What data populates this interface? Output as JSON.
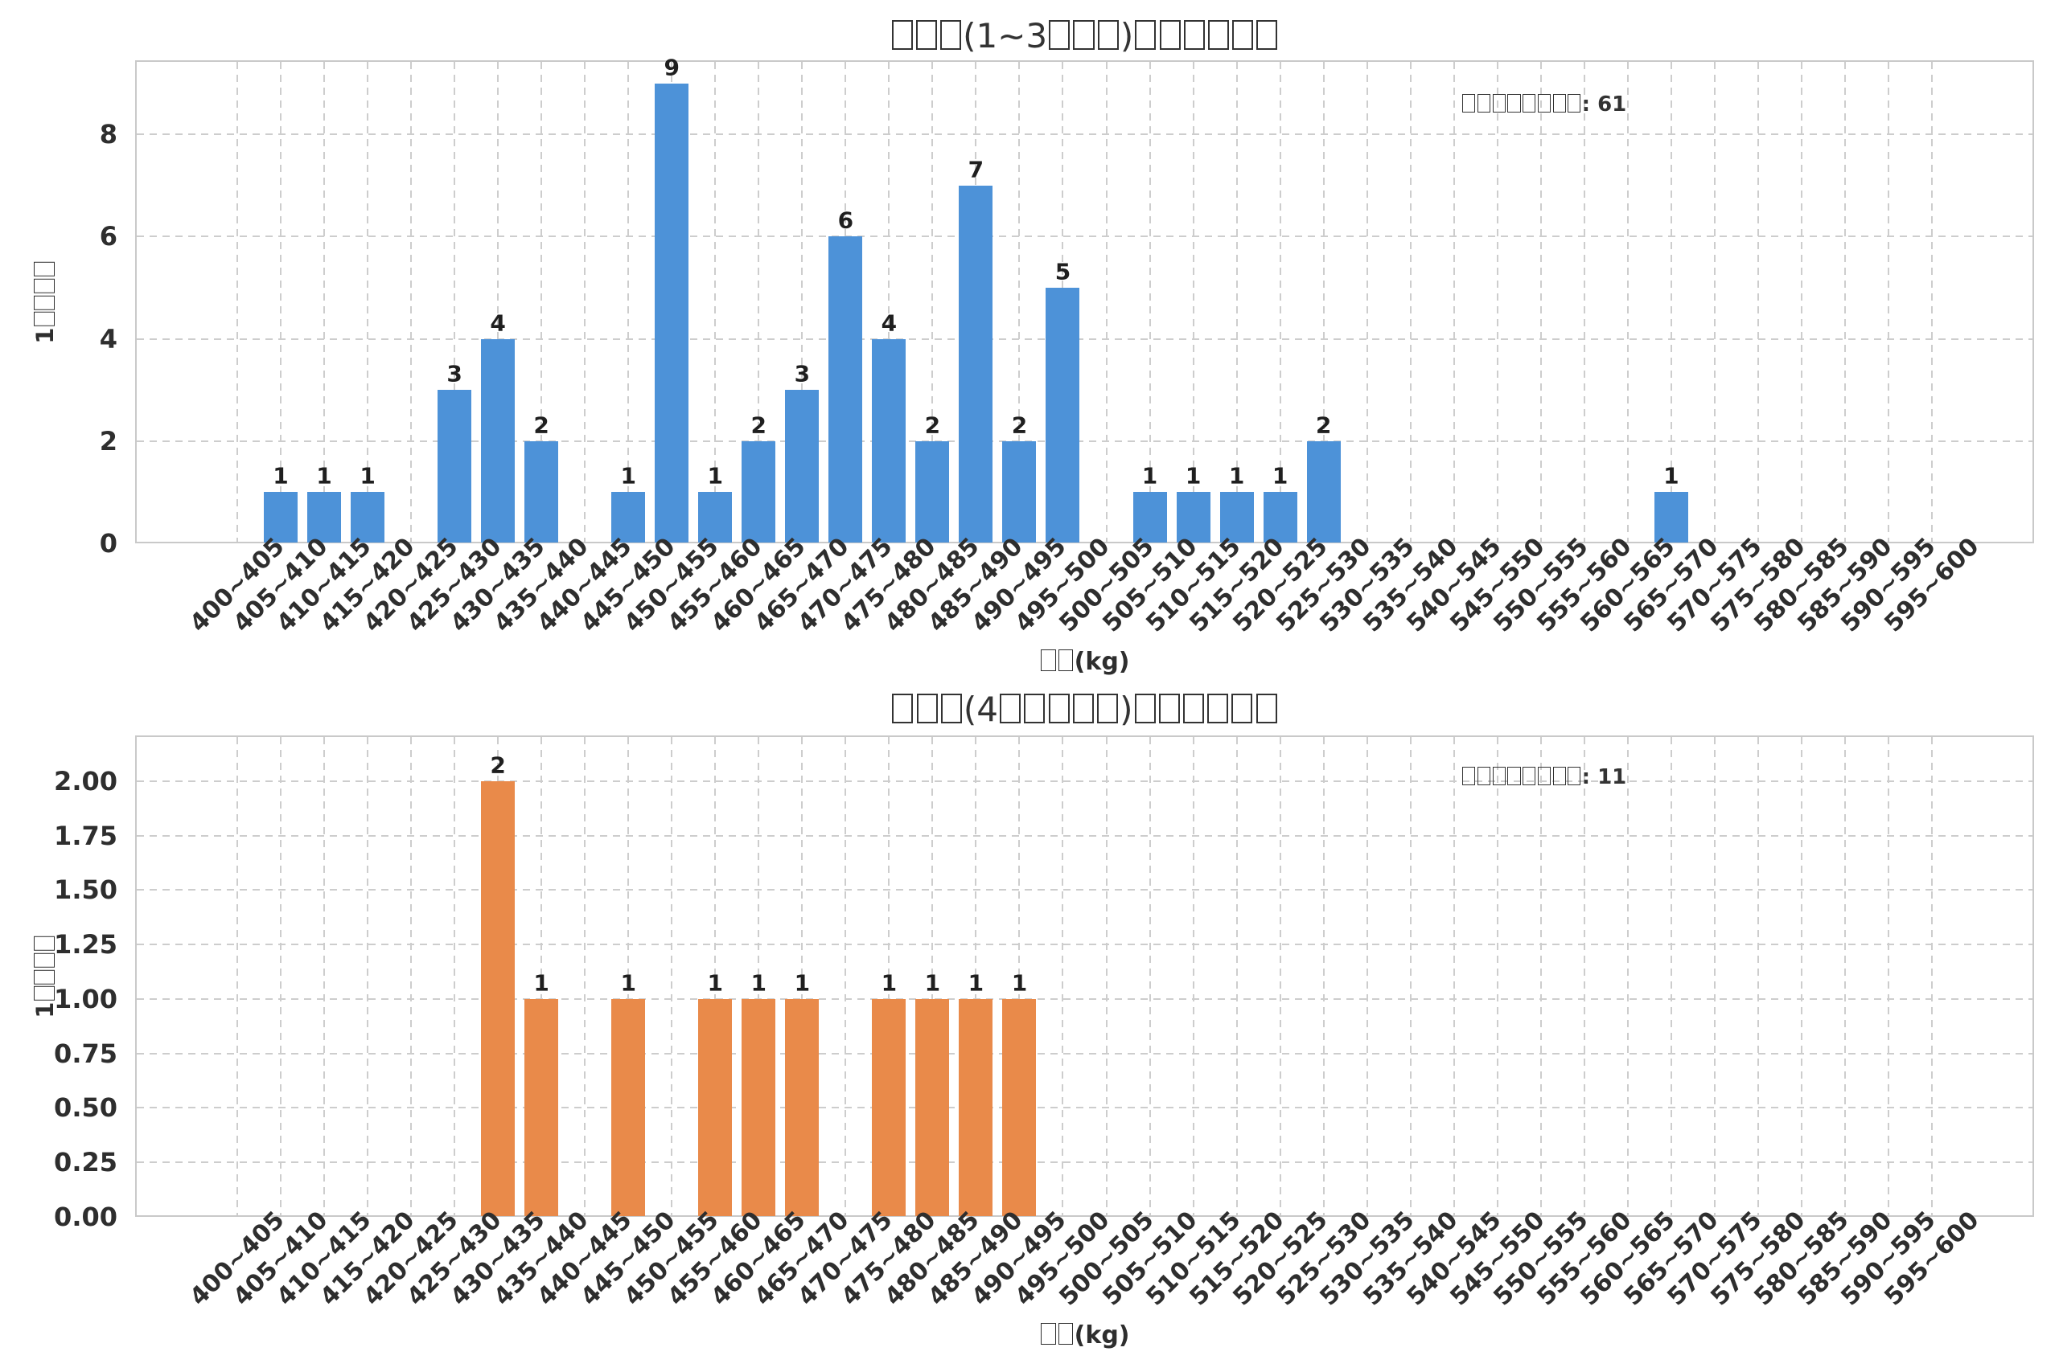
{
  "page": {
    "background": "#ffffff",
    "grid_color": "#cdcdcd",
    "spine_color": "#c9c9c9"
  },
  "chart_data": [
    {
      "type": "bar",
      "title": "□□□(1~3□□□)□□□□□□",
      "xlabel": "□□(kg)",
      "ylabel": "1□□□□",
      "annotation": "□□□□□□□□: 61",
      "bar_color": "#4D92D8",
      "grid": "dashed",
      "legend_position": "none",
      "ylim": [
        0,
        9.45
      ],
      "y_tick_labels": [
        "0",
        "2",
        "4",
        "6",
        "8"
      ],
      "y_tick_values": [
        0,
        2,
        4,
        6,
        8
      ],
      "categories": [
        "400~405",
        "405~410",
        "410~415",
        "415~420",
        "420~425",
        "425~430",
        "430~435",
        "435~440",
        "440~445",
        "445~450",
        "450~455",
        "455~460",
        "460~465",
        "465~470",
        "470~475",
        "475~480",
        "480~485",
        "485~490",
        "490~495",
        "495~500",
        "500~505",
        "505~510",
        "510~515",
        "515~520",
        "520~525",
        "525~530",
        "530~535",
        "535~540",
        "540~545",
        "545~550",
        "550~555",
        "555~560",
        "560~565",
        "565~570",
        "570~575",
        "575~580",
        "580~585",
        "585~590",
        "590~595",
        "595~600"
      ],
      "values": [
        0,
        1,
        1,
        1,
        0,
        3,
        4,
        2,
        0,
        1,
        9,
        1,
        2,
        3,
        6,
        4,
        2,
        7,
        2,
        5,
        0,
        1,
        1,
        1,
        1,
        2,
        0,
        0,
        0,
        0,
        0,
        0,
        0,
        1,
        0,
        0,
        0,
        0,
        0,
        0
      ]
    },
    {
      "type": "bar",
      "title": "□□□(4□□□□□)□□□□□□",
      "xlabel": "□□(kg)",
      "ylabel": "1□□□□",
      "annotation": "□□□□□□□□: 11",
      "bar_color": "#E98A4A",
      "grid": "dashed",
      "legend_position": "none",
      "ylim": [
        0,
        2.21
      ],
      "y_tick_labels": [
        "0.00",
        "0.25",
        "0.50",
        "0.75",
        "1.00",
        "1.25",
        "1.50",
        "1.75",
        "2.00"
      ],
      "y_tick_values": [
        0,
        0.25,
        0.5,
        0.75,
        1.0,
        1.25,
        1.5,
        1.75,
        2.0
      ],
      "categories": [
        "400~405",
        "405~410",
        "410~415",
        "415~420",
        "420~425",
        "425~430",
        "430~435",
        "435~440",
        "440~445",
        "445~450",
        "450~455",
        "455~460",
        "460~465",
        "465~470",
        "470~475",
        "475~480",
        "480~485",
        "485~490",
        "490~495",
        "495~500",
        "500~505",
        "505~510",
        "510~515",
        "515~520",
        "520~525",
        "525~530",
        "530~535",
        "535~540",
        "540~545",
        "545~550",
        "550~555",
        "555~560",
        "560~565",
        "565~570",
        "570~575",
        "575~580",
        "580~585",
        "585~590",
        "590~595",
        "595~600"
      ],
      "values": [
        0,
        0,
        0,
        0,
        0,
        0,
        2,
        1,
        0,
        1,
        0,
        1,
        1,
        1,
        0,
        1,
        1,
        1,
        1,
        0,
        0,
        0,
        0,
        0,
        0,
        0,
        0,
        0,
        0,
        0,
        0,
        0,
        0,
        0,
        0,
        0,
        0,
        0,
        0,
        0
      ]
    }
  ]
}
